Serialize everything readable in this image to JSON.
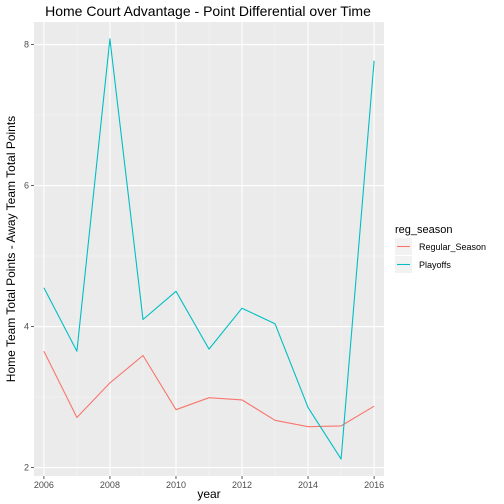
{
  "chart_data": {
    "type": "line",
    "title": "Home Court Advantage - Point Differential over Time",
    "xlabel": "year",
    "ylabel": "Home Team Total Points - Away Team Total Points",
    "x": [
      2006,
      2007,
      2008,
      2009,
      2010,
      2011,
      2012,
      2013,
      2014,
      2015,
      2016
    ],
    "xlim": [
      2005.7,
      2016.3
    ],
    "ylim": [
      1.88,
      8.32
    ],
    "x_ticks": [
      2006,
      2008,
      2010,
      2012,
      2014,
      2016
    ],
    "y_ticks": [
      2,
      4,
      6,
      8
    ],
    "grid": true,
    "legend": {
      "title": "reg_season",
      "position": "right"
    },
    "series": [
      {
        "name": "Regular_Season",
        "color": "#F8766D",
        "values": [
          3.65,
          2.71,
          3.2,
          3.59,
          2.82,
          2.99,
          2.96,
          2.67,
          2.58,
          2.59,
          2.87
        ]
      },
      {
        "name": "Playoffs",
        "color": "#00BFC4",
        "values": [
          4.55,
          3.65,
          8.08,
          4.1,
          4.5,
          3.68,
          4.26,
          4.04,
          2.85,
          2.12,
          7.77
        ]
      }
    ]
  }
}
